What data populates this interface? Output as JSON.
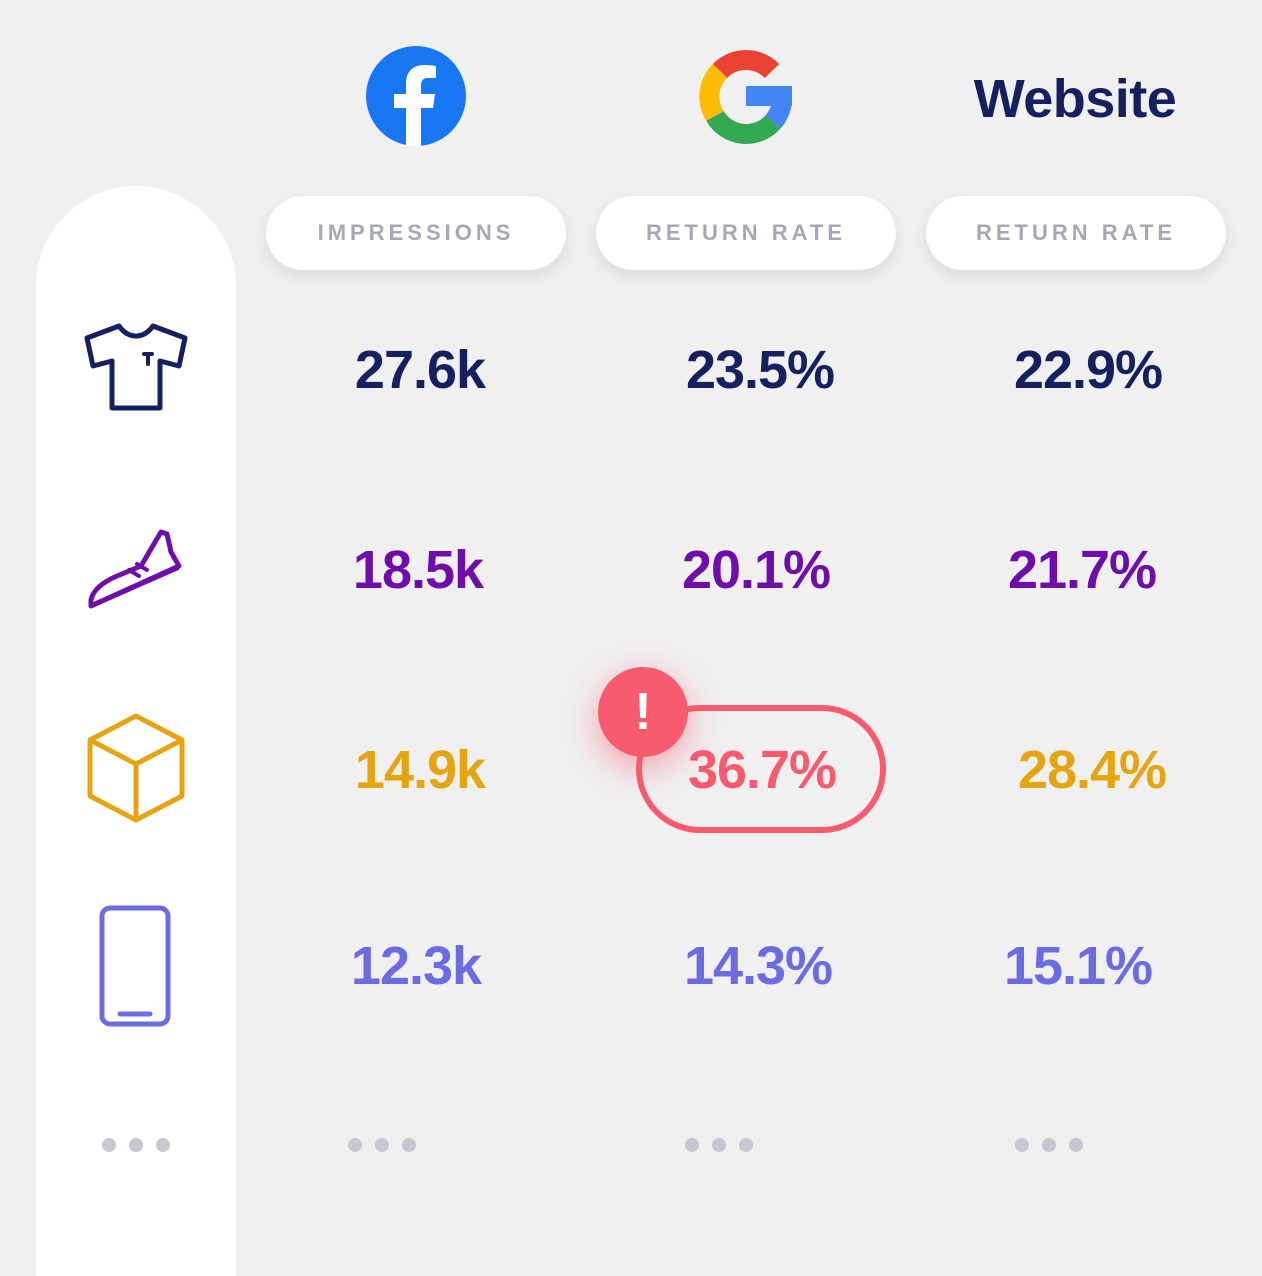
{
  "header": {
    "facebook_icon": "facebook-logo",
    "google_icon": "google-logo",
    "website_label": "Website"
  },
  "columns": [
    {
      "label": "IMPRESSIONS"
    },
    {
      "label": "RETURN RATE"
    },
    {
      "label": "RETURN RATE"
    }
  ],
  "rows": [
    {
      "icon": "tshirt-icon",
      "color": "#15215f",
      "values": [
        "27.6k",
        "23.5%",
        "22.9%"
      ]
    },
    {
      "icon": "sneaker-icon",
      "color": "#6e0da8",
      "values": [
        "18.5k",
        "20.1%",
        "21.7%"
      ]
    },
    {
      "icon": "box-icon",
      "color": "#e5a511",
      "values": [
        "14.9k",
        "36.7%",
        "28.4%"
      ]
    },
    {
      "icon": "phone-icon",
      "color": "#6a6ce0",
      "values": [
        "12.3k",
        "14.3%",
        "15.1%"
      ]
    }
  ],
  "alert": {
    "symbol": "!",
    "color": "#f75b6d",
    "value_color": "#f75b6d",
    "row": 2,
    "column": 1
  },
  "more_indicator": "more-rows-dots"
}
